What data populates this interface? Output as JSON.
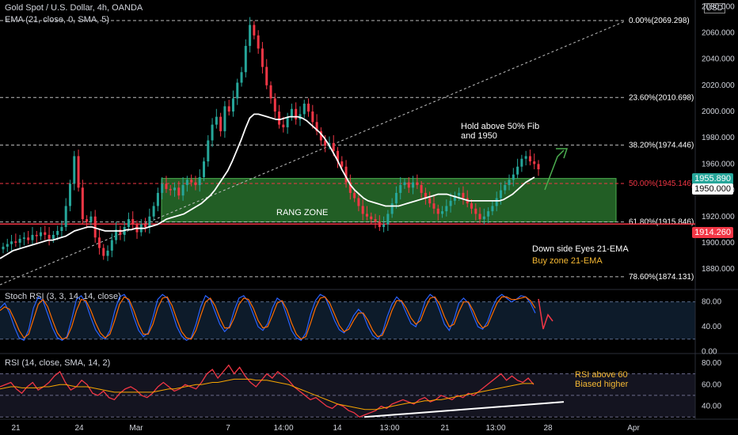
{
  "header": {
    "title": "Gold Spot / U.S. Dollar, 4h, OANDA",
    "ema_label": "EMA (21, close, 0, SMA, 5)",
    "stoch_label": "Stoch RSI (3, 3, 14, 14, close)",
    "rsi_label": "RSI (14, close, SMA, 14, 2)",
    "currency": "USD"
  },
  "annotations": {
    "hold_line1": "Hold above 50% Fib",
    "hold_line2": "and 1950",
    "range_zone": "RANG ZONE",
    "down_side": "Down side Eyes 21-EMA",
    "buy_zone": "Buy zone 21-EMA",
    "rsi_line1": "RSI above 60",
    "rsi_line2": "Biased higher"
  },
  "price_tags": {
    "last": "1955.890",
    "ema": "1950.000",
    "low": "1914.260"
  },
  "colors": {
    "up": "#26a69a",
    "down": "#f23645",
    "ema": "#ffffff",
    "stoch_k": "#2962ff",
    "stoch_d": "#ff6d00",
    "rsi": "#f23645",
    "rsi_ma": "#f7a600",
    "zone": "#2e7d32",
    "fib": "#9b9b9b",
    "tag_last": "#26a69a",
    "tag_low": "#f23645",
    "buy_zone_text": "#f5b833",
    "rsi_text": "#f5b833"
  },
  "chart_data": [
    {
      "type": "candlestick",
      "title": "Gold Spot / U.S. Dollar, 4h, OANDA",
      "x_ticks": [
        "21",
        "24",
        "Mar",
        "7",
        "14:00",
        "14",
        "13:00",
        "21",
        "13:00",
        "28",
        "Apr"
      ],
      "y_ticks": [
        "1880.000",
        "1900.000",
        "1920.000",
        "1940.000",
        "1960.000",
        "1980.000",
        "2000.000",
        "2020.000",
        "2040.000",
        "2060.000",
        "2080.000"
      ],
      "ylim": [
        1865,
        2085
      ],
      "ohlc_closes": [
        1897,
        1899,
        1901,
        1900,
        1903,
        1904,
        1902,
        1906,
        1905,
        1908,
        1906,
        1903,
        1906,
        1909,
        1912,
        1928,
        1945,
        1966,
        1942,
        1918,
        1916,
        1920,
        1904,
        1896,
        1890,
        1894,
        1902,
        1910,
        1906,
        1912,
        1918,
        1914,
        1908,
        1914,
        1912,
        1920,
        1928,
        1938,
        1945,
        1941,
        1940,
        1942,
        1936,
        1944,
        1948,
        1946,
        1944,
        1950,
        1962,
        1978,
        1990,
        1996,
        1985,
        2004,
        2000,
        2010,
        2022,
        2030,
        2050,
        2066,
        2058,
        2048,
        2034,
        2020,
        2010,
        2000,
        1990,
        1988,
        1996,
        2002,
        1994,
        1998,
        2006,
        2000,
        1992,
        1985,
        1978,
        1974,
        1976,
        1970,
        1962,
        1958,
        1946,
        1938,
        1934,
        1928,
        1922,
        1920,
        1918,
        1916,
        1912,
        1914,
        1922,
        1930,
        1938,
        1944,
        1946,
        1942,
        1946,
        1944,
        1938,
        1934,
        1930,
        1926,
        1922,
        1924,
        1928,
        1932,
        1936,
        1938,
        1934,
        1930,
        1926,
        1922,
        1918,
        1920,
        1924,
        1928,
        1934,
        1940,
        1944,
        1948,
        1952,
        1958,
        1964,
        1966,
        1962,
        1960,
        1956
      ],
      "ema_21": [
        1888,
        1890,
        1892,
        1894,
        1895,
        1896,
        1897,
        1898,
        1899,
        1900,
        1901,
        1902,
        1902,
        1903,
        1904,
        1905,
        1907,
        1909,
        1910,
        1911,
        1912,
        1912,
        1911,
        1910,
        1909,
        1909,
        1909,
        1909,
        1909,
        1910,
        1910,
        1911,
        1911,
        1911,
        1912,
        1913,
        1914,
        1916,
        1918,
        1919,
        1920,
        1921,
        1922,
        1924,
        1926,
        1928,
        1930,
        1933,
        1936,
        1940,
        1945,
        1950,
        1955,
        1962,
        1970,
        1978,
        1987,
        1995,
        1998,
        1998,
        1997,
        1996,
        1995,
        1994,
        1994,
        1995,
        1996,
        1996,
        1996,
        1995,
        1993,
        1990,
        1987,
        1984,
        1980,
        1975,
        1969,
        1963,
        1956,
        1950,
        1944,
        1940,
        1937,
        1934,
        1932,
        1931,
        1930,
        1929,
        1928,
        1928,
        1928,
        1928,
        1929,
        1930,
        1931,
        1932,
        1933,
        1934,
        1935,
        1936,
        1937,
        1937,
        1937,
        1936,
        1935,
        1934,
        1933,
        1932,
        1932,
        1932,
        1932,
        1932,
        1932,
        1932,
        1932,
        1933,
        1935,
        1937,
        1940,
        1943,
        1946,
        1948,
        1950
      ],
      "fib_levels": [
        {
          "label": "0.00%(2069.298)",
          "value": 2069.298
        },
        {
          "label": "23.60%(2010.698)",
          "value": 2010.698
        },
        {
          "label": "38.20%(1974.446)",
          "value": 1974.446
        },
        {
          "label": "50.00%(1945.146)",
          "value": 1945.146
        },
        {
          "label": "61.80%(1915.846)",
          "value": 1915.846
        },
        {
          "label": "78.60%(1874.131)",
          "value": 1874.131
        }
      ],
      "range_zone": [
        1915.846,
        1949
      ]
    },
    {
      "type": "line",
      "title": "Stoch RSI (3, 3, 14, 14, close)",
      "y_ticks": [
        "0.00",
        "40.00",
        "80.00"
      ],
      "ylim": [
        -2,
        100
      ],
      "bands": [
        20,
        80
      ],
      "series": [
        {
          "name": "K",
          "values": [
            70,
            78,
            62,
            40,
            22,
            18,
            35,
            70,
            88,
            82,
            60,
            38,
            22,
            18,
            24,
            52,
            84,
            90,
            78,
            55,
            35,
            24,
            20,
            34,
            65,
            88,
            92,
            80,
            55,
            34,
            24,
            30,
            55,
            84,
            92,
            86,
            64,
            40,
            25,
            18,
            22,
            44,
            72,
            90,
            84,
            64,
            44,
            32,
            40,
            66,
            86,
            90,
            80,
            60,
            40,
            34,
            45,
            70,
            86,
            80,
            58,
            34,
            22,
            18,
            30,
            60,
            82,
            92,
            88,
            70,
            50,
            35,
            30,
            42,
            58,
            68,
            60,
            40,
            26,
            20,
            30,
            56,
            76,
            88,
            80,
            62,
            45,
            40,
            58,
            82,
            92,
            86,
            66,
            44,
            34,
            52,
            78,
            86,
            78,
            58,
            40,
            36,
            48,
            70,
            86,
            92,
            86,
            80,
            84,
            90,
            88,
            78,
            62
          ]
        },
        {
          "name": "D",
          "values": [
            66,
            72,
            68,
            52,
            34,
            22,
            28,
            52,
            76,
            84,
            72,
            50,
            30,
            20,
            22,
            40,
            66,
            84,
            82,
            66,
            46,
            30,
            22,
            28,
            50,
            76,
            88,
            84,
            66,
            44,
            28,
            28,
            44,
            70,
            86,
            88,
            74,
            52,
            32,
            22,
            20,
            34,
            58,
            80,
            86,
            74,
            54,
            38,
            38,
            54,
            76,
            86,
            84,
            70,
            50,
            38,
            40,
            58,
            78,
            82,
            68,
            46,
            28,
            20,
            24,
            46,
            70,
            86,
            88,
            78,
            60,
            42,
            32,
            36,
            50,
            62,
            62,
            50,
            34,
            24,
            26,
            44,
            66,
            82,
            82,
            70,
            54,
            44,
            50,
            70,
            86,
            88,
            76,
            56,
            40,
            44,
            64,
            80,
            80,
            66,
            48,
            38,
            42,
            60,
            78,
            88,
            88,
            84,
            84,
            86,
            88,
            82,
            70
          ]
        }
      ]
    },
    {
      "type": "line",
      "title": "RSI (14, close, SMA, 14, 2)",
      "y_ticks": [
        "40.00",
        "60.00",
        "80.00"
      ],
      "ylim": [
        28,
        88
      ],
      "bands": [
        30,
        50,
        70
      ],
      "series": [
        {
          "name": "RSI",
          "values": [
            58,
            60,
            62,
            56,
            52,
            58,
            62,
            55,
            58,
            62,
            68,
            72,
            62,
            55,
            58,
            64,
            60,
            52,
            50,
            54,
            48,
            46,
            52,
            56,
            58,
            55,
            50,
            48,
            52,
            58,
            62,
            58,
            54,
            56,
            60,
            58,
            56,
            62,
            70,
            74,
            66,
            72,
            78,
            70,
            76,
            68,
            62,
            58,
            64,
            70,
            66,
            72,
            68,
            64,
            58,
            54,
            50,
            46,
            48,
            44,
            40,
            38,
            42,
            40,
            36,
            34,
            30,
            32,
            34,
            36,
            40,
            38,
            42,
            44,
            46,
            44,
            42,
            46,
            48,
            44,
            46,
            50,
            48,
            46,
            50,
            48,
            52,
            50,
            54,
            58,
            62,
            66,
            70,
            64,
            68,
            64,
            62,
            66,
            60
          ]
        },
        {
          "name": "RSI-MA",
          "values": [
            56,
            57,
            58,
            58,
            57,
            57,
            57,
            57,
            58,
            58,
            59,
            60,
            60,
            59,
            58,
            58,
            58,
            57,
            56,
            55,
            54,
            53,
            53,
            53,
            53,
            53,
            53,
            53,
            53,
            54,
            55,
            56,
            56,
            57,
            58,
            59,
            60,
            60,
            61,
            62,
            62,
            63,
            64,
            65,
            65,
            65,
            65,
            64,
            64,
            64,
            63,
            62,
            61,
            60,
            58,
            56,
            54,
            52,
            50,
            48,
            46,
            44,
            42,
            41,
            40,
            39,
            38,
            37,
            37,
            37,
            38,
            39,
            40,
            41,
            42,
            43,
            43,
            44,
            45,
            45,
            46,
            46,
            47,
            48,
            49,
            50,
            51,
            52,
            53,
            54,
            55,
            56,
            57,
            58,
            59,
            60,
            61,
            61,
            61
          ]
        }
      ]
    }
  ]
}
